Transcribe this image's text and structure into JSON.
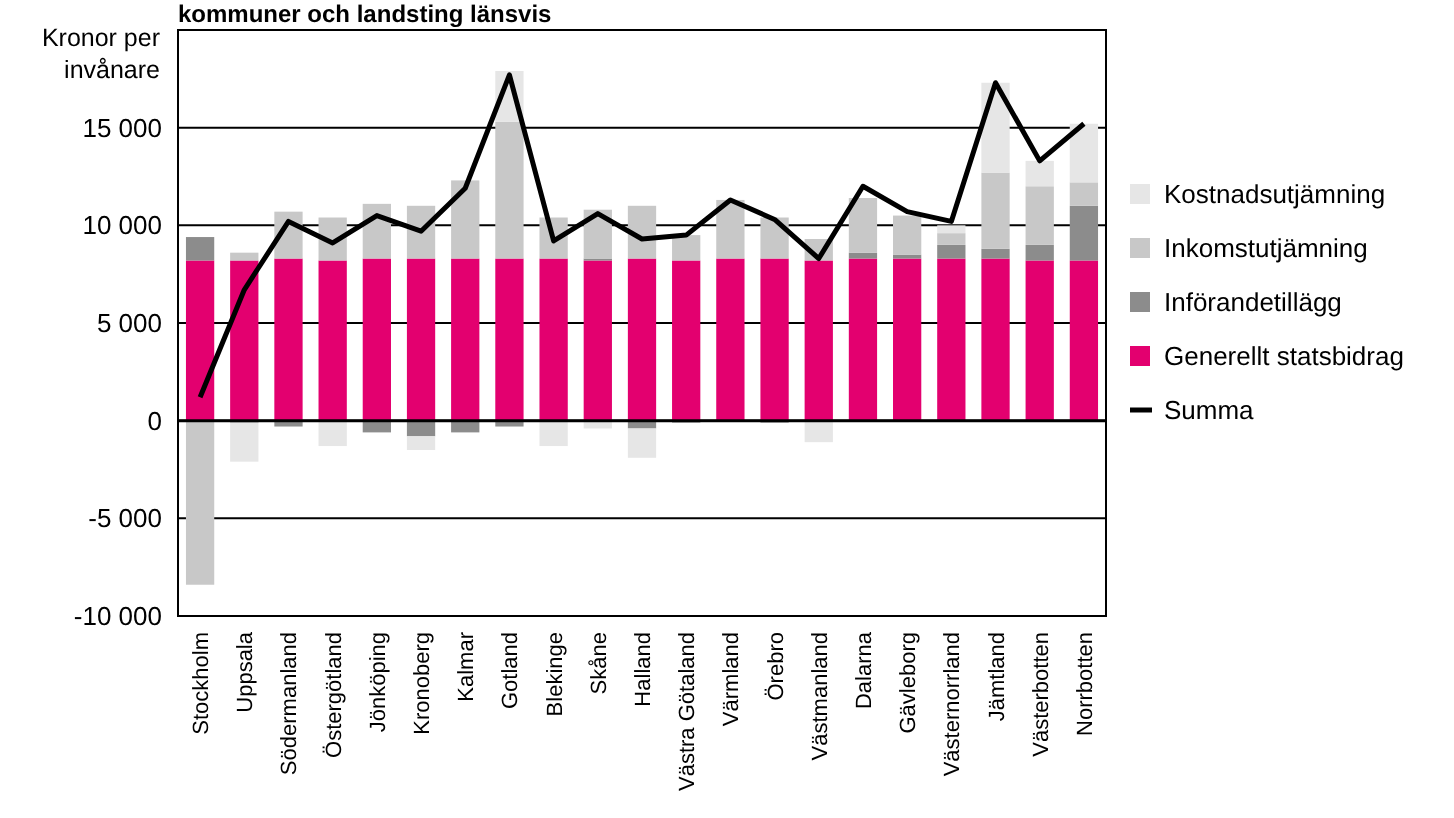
{
  "chart_data": {
    "type": "bar",
    "stacked": true,
    "title": "kommuner och landsting länsvis",
    "ylabel": "Kronor per invånare",
    "categories": [
      "Stockholm",
      "Uppsala",
      "Södermanland",
      "Östergötland",
      "Jönköping",
      "Kronoberg",
      "Kalmar",
      "Gotland",
      "Blekinge",
      "Skåne",
      "Halland",
      "Västra Götaland",
      "Värmland",
      "Örebro",
      "Västmanland",
      "Dalarna",
      "Gävleborg",
      "Västernorrland",
      "Jämtland",
      "Västerbotten",
      "Norrbotten"
    ],
    "series": [
      {
        "name": "Generellt statsbidrag",
        "color": "#e3006f",
        "values": [
          8200,
          8200,
          8300,
          8200,
          8300,
          8300,
          8300,
          8300,
          8300,
          8200,
          8300,
          8200,
          8300,
          8300,
          8200,
          8300,
          8300,
          8300,
          8300,
          8200,
          8200
        ]
      },
      {
        "name": "Införandetillägg",
        "color": "#8c8c8c",
        "values": [
          1200,
          -100,
          -300,
          null,
          -600,
          -800,
          -600,
          -300,
          null,
          100,
          -400,
          -100,
          null,
          -100,
          null,
          300,
          200,
          700,
          500,
          800,
          2800
        ]
      },
      {
        "name": "Inkomstutjämning",
        "color": "#c8c8c8",
        "values": [
          -8400,
          400,
          2400,
          2200,
          2800,
          2700,
          4000,
          7000,
          2100,
          2500,
          2700,
          1300,
          3000,
          2100,
          1100,
          2800,
          2000,
          600,
          3900,
          3000,
          1200
        ]
      },
      {
        "name": "Kostnadsutjämning",
        "color": "#e6e6e6",
        "values": [
          null,
          -2000,
          null,
          -1300,
          null,
          -700,
          null,
          2600,
          -1300,
          -400,
          -1500,
          null,
          null,
          null,
          -1100,
          null,
          null,
          400,
          4600,
          1300,
          3000
        ]
      },
      {
        "name": "Summa",
        "type": "line",
        "color": "#000000",
        "values": [
          1200,
          6700,
          10200,
          9100,
          10500,
          9700,
          11900,
          17700,
          9200,
          10600,
          9300,
          9500,
          11300,
          10300,
          8300,
          12000,
          10700,
          10200,
          17300,
          13300,
          15200
        ]
      }
    ],
    "ylim": [
      -10000,
      20000
    ],
    "yticks": [
      {
        "value": -10000,
        "label": "-10 000"
      },
      {
        "value": -5000,
        "label": "-5 000"
      },
      0,
      {
        "value": 5000,
        "label": "5 000"
      },
      {
        "value": 10000,
        "label": "10 000"
      },
      {
        "value": 15000,
        "label": "15 000"
      }
    ],
    "grid": "y",
    "legend": "right",
    "marker": "none",
    "line_style": "solid"
  }
}
